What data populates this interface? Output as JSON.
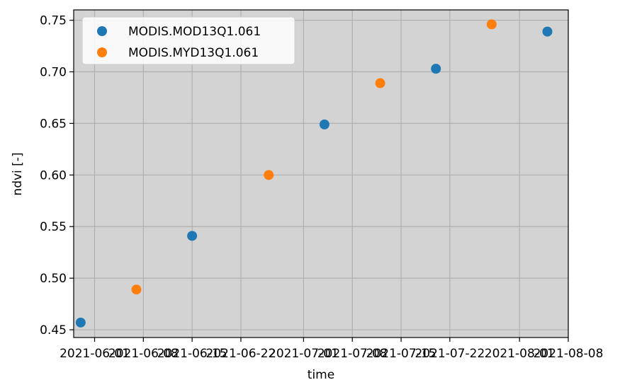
{
  "chart_data": {
    "type": "scatter",
    "xlabel": "time",
    "ylabel": "ndvi [-]",
    "x_axis_type": "date",
    "xlim": [
      "2021-05-29",
      "2021-08-08"
    ],
    "ylim": [
      0.4425,
      0.76
    ],
    "xticks": [
      "2021-06-01",
      "2021-06-08",
      "2021-06-15",
      "2021-06-22",
      "2021-07-01",
      "2021-07-08",
      "2021-07-15",
      "2021-07-22",
      "2021-08-01",
      "2021-08-08"
    ],
    "yticks": [
      "0.45",
      "0.50",
      "0.55",
      "0.60",
      "0.65",
      "0.70",
      "0.75"
    ],
    "grid": true,
    "legend_position": "top-left",
    "plot_background": "#d3d3d3",
    "series": [
      {
        "name": "MODIS.MOD13Q1.061",
        "color": "#1f77b4",
        "points": [
          {
            "x": "2021-05-30",
            "y": 0.457
          },
          {
            "x": "2021-06-15",
            "y": 0.541
          },
          {
            "x": "2021-07-04",
            "y": 0.649
          },
          {
            "x": "2021-07-20",
            "y": 0.703
          },
          {
            "x": "2021-08-05",
            "y": 0.739
          }
        ]
      },
      {
        "name": "MODIS.MYD13Q1.061",
        "color": "#ff7f0e",
        "points": [
          {
            "x": "2021-06-07",
            "y": 0.489
          },
          {
            "x": "2021-06-26",
            "y": 0.6
          },
          {
            "x": "2021-07-12",
            "y": 0.689
          },
          {
            "x": "2021-07-28",
            "y": 0.746
          }
        ]
      }
    ]
  }
}
